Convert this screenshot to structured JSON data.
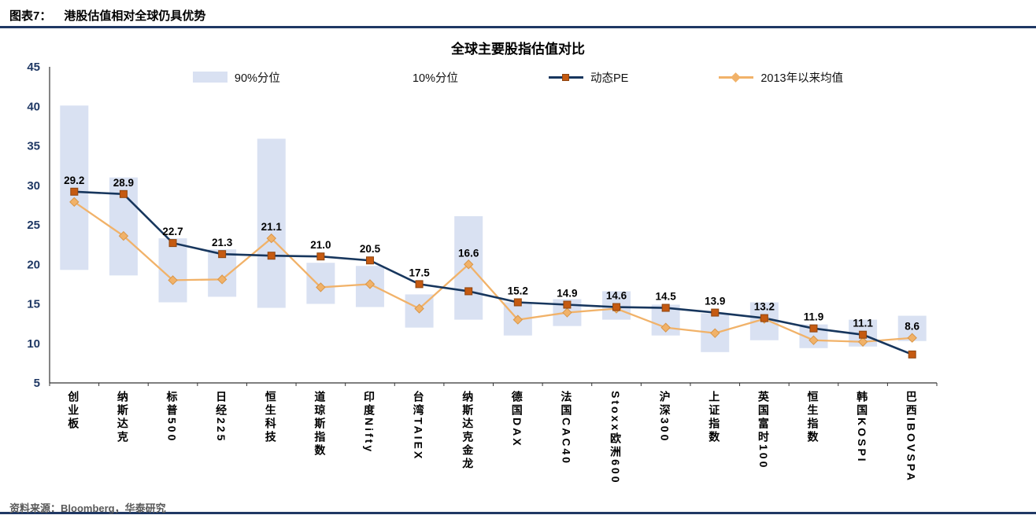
{
  "page": {
    "figure_label": "图表7：",
    "figure_title": "港股估值相对全球仍具优势",
    "source": "资料来源：Bloomberg，华泰研究"
  },
  "chart_data": {
    "type": "combo",
    "title": "全球主要股指估值对比",
    "ylim": [
      5,
      45
    ],
    "yticks": [
      45,
      40,
      35,
      30,
      25,
      20,
      15,
      10,
      5
    ],
    "legend": [
      {
        "label": "90%分位",
        "swatch": "bar"
      },
      {
        "label": "10%分位",
        "swatch": "hidden"
      },
      {
        "label": "动态PE",
        "swatch": "line-square"
      },
      {
        "label": "2013年以来均值",
        "swatch": "line-diamond"
      }
    ],
    "categories": [
      "创业板",
      "纳斯达克",
      "标普500",
      "日经225",
      "恒生科技",
      "道琼斯指数",
      "印度Nifty",
      "台湾TAIEX",
      "纳斯达克金龙",
      "德国DAX",
      "法国CAC40",
      "Stoxx欧洲600",
      "沪深300",
      "上证指数",
      "英国富时100",
      "恒生指数",
      "韩国KOSPI",
      "巴西IBOVSPA"
    ],
    "series": [
      {
        "name": "动态PE",
        "type": "line",
        "values": [
          29.2,
          28.9,
          22.7,
          21.3,
          21.1,
          21.0,
          20.5,
          17.5,
          16.6,
          15.2,
          14.9,
          14.6,
          14.5,
          13.9,
          13.2,
          11.9,
          11.1,
          8.6
        ]
      },
      {
        "name": "2013年以来均值",
        "type": "line",
        "values": [
          27.9,
          23.6,
          18.0,
          18.1,
          23.3,
          17.1,
          17.5,
          14.4,
          20.0,
          13.0,
          13.9,
          14.4,
          12.0,
          11.3,
          13.1,
          10.4,
          10.2,
          10.7
        ]
      },
      {
        "name": "10%-90%分位区间",
        "type": "range-bar",
        "ranges": [
          [
            19.3,
            40.1
          ],
          [
            18.6,
            31.0
          ],
          [
            15.2,
            23.3
          ],
          [
            15.9,
            21.9
          ],
          [
            14.5,
            35.9
          ],
          [
            15.0,
            20.2
          ],
          [
            14.6,
            19.8
          ],
          [
            12.0,
            16.2
          ],
          [
            13.0,
            26.1
          ],
          [
            11.0,
            15.2
          ],
          [
            12.2,
            15.6
          ],
          [
            13.0,
            16.6
          ],
          [
            11.0,
            14.9
          ],
          [
            8.9,
            13.8
          ],
          [
            10.4,
            15.2
          ],
          [
            9.4,
            12.4
          ],
          [
            9.6,
            13.0
          ],
          [
            10.3,
            13.5
          ]
        ]
      }
    ],
    "colors": {
      "range_bar": "#d9e1f2",
      "pe_line": "#17365d",
      "pe_marker": "#c55a11",
      "pe_marker_edge": "#8e4510",
      "mean_line": "#f1b269",
      "mean_marker": "#f1b269",
      "mean_marker_edge": "#d99648",
      "axis": "#333333",
      "ytick_text": "#1f3864",
      "value_label": "#000000",
      "rule": "#1f3864"
    }
  }
}
